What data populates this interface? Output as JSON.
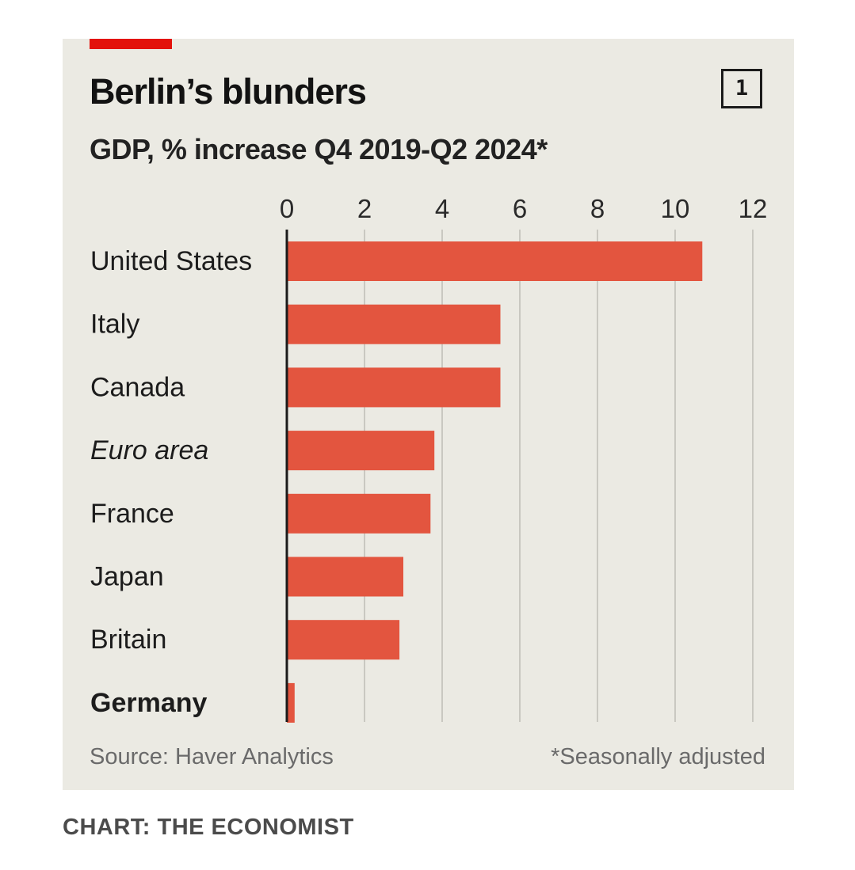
{
  "header": {
    "title": "Berlin’s blunders",
    "subtitle": "GDP, % increase Q4 2019-Q2 2024*",
    "chart_number": "1"
  },
  "footer": {
    "source": "Source: Haver Analytics",
    "footnote": "*Seasonally adjusted",
    "credit": "CHART: THE ECONOMIST"
  },
  "colors": {
    "bar": "#e3553f",
    "accent_tag": "#e3120b",
    "panel_background": "#ebeae3",
    "gridline": "#c9c8c1",
    "axis": "#1b1b1b"
  },
  "chart_data": {
    "type": "bar",
    "orientation": "horizontal",
    "title": "Berlin’s blunders",
    "subtitle": "GDP, % increase Q4 2019-Q2 2024*",
    "categories": [
      "United States",
      "Italy",
      "Canada",
      "Euro area",
      "France",
      "Japan",
      "Britain",
      "Germany"
    ],
    "values": [
      10.7,
      5.5,
      5.5,
      3.8,
      3.7,
      3.0,
      2.9,
      0.2
    ],
    "category_styles": [
      "normal",
      "normal",
      "normal",
      "italic",
      "normal",
      "normal",
      "normal",
      "bold"
    ],
    "xlim": [
      0,
      12
    ],
    "xticks": [
      "0",
      "2",
      "4",
      "6",
      "8",
      "10",
      "12"
    ],
    "tick_position": "top",
    "grid": "vertical",
    "legend": "none"
  }
}
